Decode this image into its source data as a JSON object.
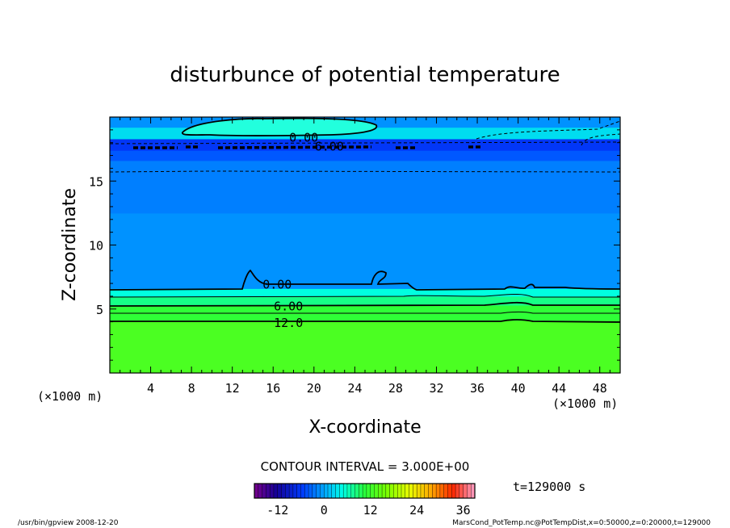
{
  "chart_data": {
    "type": "heatmap",
    "title": "disturbunce of potential temperature",
    "xlabel": "X-coordinate",
    "ylabel": "Z-coordinate",
    "x_unit_left": "(×1000 m)",
    "x_unit_right": "(×1000 m)",
    "xlim": [
      0,
      50
    ],
    "ylim": [
      0,
      20
    ],
    "x_ticks": [
      4,
      8,
      12,
      16,
      20,
      24,
      28,
      32,
      36,
      40,
      44,
      48
    ],
    "y_ticks": [
      5,
      10,
      15
    ],
    "contour_interval_text": "CONTOUR INTERVAL = 3.000E+00",
    "time_text": "t=129000 s",
    "contour_labels": [
      {
        "text": "0.00",
        "x": 19,
        "z": 18.4
      },
      {
        "text": "6.00",
        "x": 21.5,
        "z": 17.7
      },
      {
        "text": "0.00",
        "x": 16.4,
        "z": 6.9
      },
      {
        "text": "6.00",
        "x": 17.5,
        "z": 5.2
      },
      {
        "text": "12.0",
        "x": 17.5,
        "z": 3.9
      }
    ],
    "colorbar": {
      "range": [
        -18,
        39
      ],
      "ticks": [
        -12,
        0,
        12,
        24,
        36
      ]
    },
    "bands": [
      {
        "z0": 0,
        "z1": 4.1,
        "value": 13
      },
      {
        "z0": 4.1,
        "z1": 5.3,
        "value": 11
      },
      {
        "z0": 5.3,
        "z1": 6.0,
        "value": 8
      },
      {
        "z0": 6.0,
        "z1": 6.6,
        "value": 5
      },
      {
        "z0": 6.6,
        "z1": 12.5,
        "value": -1
      },
      {
        "z0": 12.5,
        "z1": 16.6,
        "value": -2
      },
      {
        "z0": 16.6,
        "z1": 17.4,
        "value": -4
      },
      {
        "z0": 17.4,
        "z1": 18.3,
        "value": -6
      },
      {
        "z0": 18.3,
        "z1": 19.2,
        "value": 3
      },
      {
        "z0": 19.2,
        "z1": 20,
        "value": -1
      }
    ]
  },
  "footer": {
    "left": "/usr/bin/gpview   2008-12-20",
    "right": "MarsCond_PotTemp.nc@PotTempDist,x=0:50000,z=0:20000,t=129000"
  }
}
